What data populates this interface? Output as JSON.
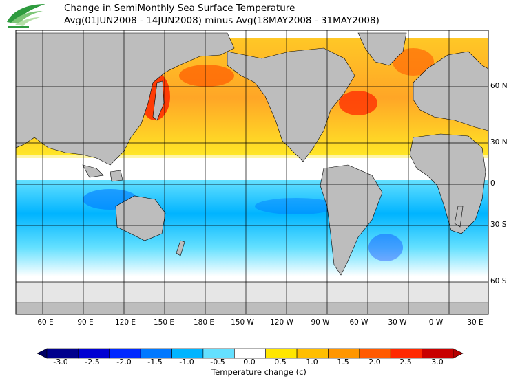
{
  "header": {
    "title": "Change in SemiMonthly Sea Surface Temperature",
    "subtitle": "Avg(01JUN2008 - 14JUN2008) minus Avg(18MAY2008 - 31MAY2008)",
    "logo_icon": "leaf-swoosh-logo"
  },
  "map": {
    "projection": "equirectangular",
    "lon_labels": [
      "60 E",
      "90 E",
      "120 E",
      "150 E",
      "180 E",
      "150 W",
      "120 W",
      "90 W",
      "60 W",
      "30 W",
      "0 W",
      "30 E"
    ],
    "lat_labels": [
      "60 N",
      "30 N",
      "0",
      "30 S",
      "60 S"
    ],
    "land_color": "#bdbdbd",
    "ice_color": "#e6e6e6",
    "grid": true
  },
  "colorbar": {
    "tick_labels": [
      "-3.0",
      "-2.5",
      "-2.0",
      "-1.5",
      "-1.0",
      "-0.5",
      "0.0",
      "0.5",
      "1.0",
      "1.5",
      "2.0",
      "2.5",
      "3.0"
    ],
    "colors": [
      "#00008c",
      "#0000d2",
      "#0028ff",
      "#0078ff",
      "#00b4ff",
      "#64e0ff",
      "#ffffff",
      "#ffe600",
      "#ffbe00",
      "#ff9600",
      "#ff5a00",
      "#ff2800",
      "#c80000"
    ],
    "title": "Temperature change  (c)",
    "range": [
      -3.0,
      3.0
    ]
  }
}
